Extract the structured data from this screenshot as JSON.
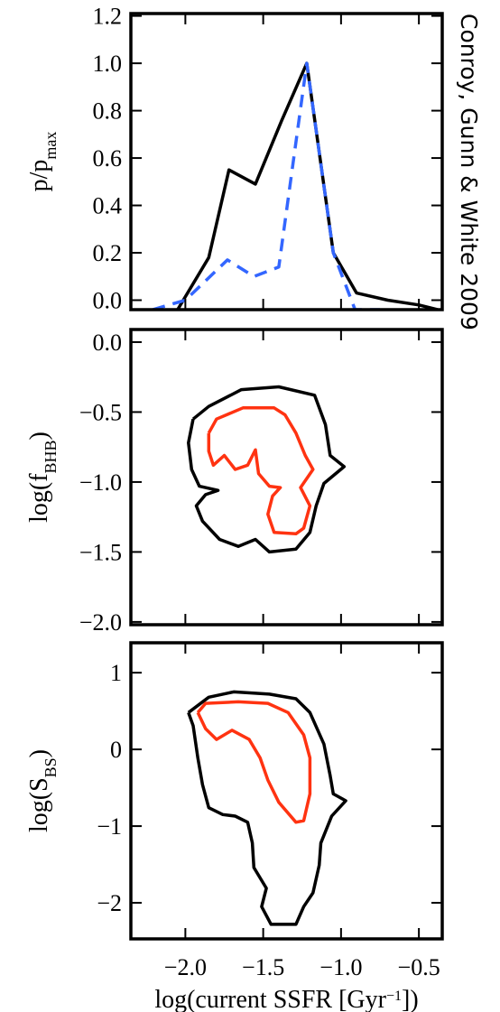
{
  "chart_data": [
    {
      "type": "line",
      "annotation": "Conroy, Gunn & White 2009",
      "ylabel": [
        {
          "text": "p/p"
        },
        {
          "text": "max",
          "shift": "sub"
        }
      ],
      "xlim": [
        -2.35,
        -0.35
      ],
      "xticks": [
        {
          "value": -2,
          "label": "−2.0"
        },
        {
          "value": -1.5,
          "label": "−1.5"
        },
        {
          "value": -1,
          "label": "−1.0"
        },
        {
          "value": -0.5,
          "label": "−0.5"
        }
      ],
      "ylim": [
        -0.04,
        1.21
      ],
      "yticks": [
        {
          "value": 0,
          "label": "0.0"
        },
        0.2,
        0.4,
        0.6,
        0.8,
        {
          "value": 1,
          "label": "1.0"
        },
        1.2
      ],
      "series": [
        {
          "color": "#000000",
          "dash": false,
          "x": [
            -2.05,
            -1.85,
            -1.72,
            -1.55,
            -1.38,
            -1.22,
            -1.05,
            -0.9,
            -0.7,
            -0.5,
            -0.38
          ],
          "values": [
            -0.04,
            0.18,
            0.55,
            0.49,
            0.76,
            1.0,
            0.2,
            0.03,
            0.0,
            -0.02,
            -0.04
          ]
        },
        {
          "color": "#3366ff",
          "dash": true,
          "x": [
            -2.21,
            -2.0,
            -1.73,
            -1.56,
            -1.4,
            -1.22,
            -1.05,
            -0.91,
            -0.75
          ],
          "values": [
            -0.04,
            0.0,
            0.17,
            0.1,
            0.14,
            1.0,
            0.2,
            -0.04,
            -0.04
          ]
        }
      ]
    },
    {
      "type": "contour",
      "ylabel": [
        {
          "text": "log(f"
        },
        {
          "text": "BHB",
          "shift": "sub"
        },
        {
          "text": ")"
        }
      ],
      "xlim": [
        -2.35,
        -0.35
      ],
      "xticks": [
        {
          "value": -2,
          "label": "−2.0"
        },
        {
          "value": -1.5,
          "label": "−1.5"
        },
        {
          "value": -1,
          "label": "−1.0"
        },
        {
          "value": -0.5,
          "label": "−0.5"
        }
      ],
      "ylim": [
        -2.02,
        0.09
      ],
      "yticks": [
        {
          "value": 0,
          "label": "0.0"
        },
        {
          "value": -0.5,
          "label": "−0.5"
        },
        {
          "value": -1,
          "label": "−1.0"
        },
        {
          "value": -1.5,
          "label": "−1.5"
        },
        {
          "value": -2,
          "label": "−2.0"
        }
      ],
      "series": [
        {
          "color": "#000000",
          "x": [
            -1.95,
            -1.85,
            -1.64,
            -1.4,
            -1.17,
            -1.1,
            -1.07,
            -0.98,
            -1.11,
            -1.16,
            -1.2,
            -1.29,
            -1.46,
            -1.55,
            -1.66,
            -1.78,
            -1.89,
            -1.93,
            -1.87,
            -1.79,
            -1.91,
            -1.96,
            -1.98,
            -1.95
          ],
          "values": [
            -0.55,
            -0.46,
            -0.34,
            -0.32,
            -0.38,
            -0.59,
            -0.81,
            -0.89,
            -1.01,
            -1.17,
            -1.36,
            -1.48,
            -1.5,
            -1.41,
            -1.46,
            -1.41,
            -1.28,
            -1.17,
            -1.09,
            -1.06,
            -1.03,
            -0.91,
            -0.72,
            -0.55
          ]
        },
        {
          "color": "#ff3311",
          "x": [
            -1.85,
            -1.8,
            -1.63,
            -1.43,
            -1.36,
            -1.29,
            -1.23,
            -1.18,
            -1.26,
            -1.2,
            -1.24,
            -1.29,
            -1.43,
            -1.47,
            -1.44,
            -1.39,
            -1.46,
            -1.53,
            -1.55,
            -1.6,
            -1.68,
            -1.75,
            -1.82,
            -1.85,
            -1.85
          ],
          "values": [
            -0.65,
            -0.55,
            -0.47,
            -0.47,
            -0.52,
            -0.65,
            -0.81,
            -0.91,
            -1.04,
            -1.17,
            -1.33,
            -1.37,
            -1.36,
            -1.23,
            -1.1,
            -1.04,
            -1.03,
            -0.94,
            -0.77,
            -0.88,
            -0.91,
            -0.81,
            -0.88,
            -0.78,
            -0.65
          ]
        }
      ]
    },
    {
      "type": "contour",
      "ylabel": [
        {
          "text": "log(S"
        },
        {
          "text": "BS",
          "shift": "sub"
        },
        {
          "text": ")"
        }
      ],
      "xlabel": [
        {
          "text": "log(current SSFR [Gyr"
        },
        {
          "text": "−1",
          "shift": "super"
        },
        {
          "text": "])"
        }
      ],
      "xlim": [
        -2.35,
        -0.35
      ],
      "xticks": [
        {
          "value": -2,
          "label": "−2.0"
        },
        {
          "value": -1.5,
          "label": "−1.5"
        },
        {
          "value": -1,
          "label": "−1.0"
        },
        {
          "value": -0.5,
          "label": "−0.5"
        }
      ],
      "ylim": [
        -2.47,
        1.39
      ],
      "yticks": [
        1,
        0,
        {
          "value": -1,
          "label": "−1"
        },
        {
          "value": -2,
          "label": "−2"
        }
      ],
      "series": [
        {
          "color": "#000000",
          "x": [
            -1.98,
            -1.85,
            -1.69,
            -1.46,
            -1.29,
            -1.2,
            -1.11,
            -1.07,
            -1.05,
            -0.97,
            -1.06,
            -1.13,
            -1.14,
            -1.18,
            -1.24,
            -1.29,
            -1.45,
            -1.51,
            -1.48,
            -1.56,
            -1.57,
            -1.6,
            -1.68,
            -1.76,
            -1.85,
            -1.89,
            -1.92,
            -1.95,
            -1.98
          ],
          "values": [
            0.48,
            0.68,
            0.75,
            0.72,
            0.66,
            0.48,
            0.07,
            -0.34,
            -0.58,
            -0.67,
            -0.87,
            -1.22,
            -1.51,
            -1.87,
            -2.05,
            -2.28,
            -2.28,
            -2.05,
            -1.81,
            -1.54,
            -1.22,
            -0.95,
            -0.87,
            -0.85,
            -0.76,
            -0.46,
            -0.11,
            0.31,
            0.48
          ]
        },
        {
          "color": "#ff3311",
          "x": [
            -1.92,
            -1.87,
            -1.66,
            -1.47,
            -1.34,
            -1.24,
            -1.2,
            -1.2,
            -1.24,
            -1.29,
            -1.4,
            -1.47,
            -1.52,
            -1.59,
            -1.7,
            -1.8,
            -1.87,
            -1.92
          ],
          "values": [
            0.48,
            0.6,
            0.62,
            0.6,
            0.48,
            0.19,
            -0.11,
            -0.58,
            -0.93,
            -0.95,
            -0.69,
            -0.4,
            -0.11,
            0.13,
            0.25,
            0.13,
            0.27,
            0.48
          ]
        }
      ]
    }
  ]
}
